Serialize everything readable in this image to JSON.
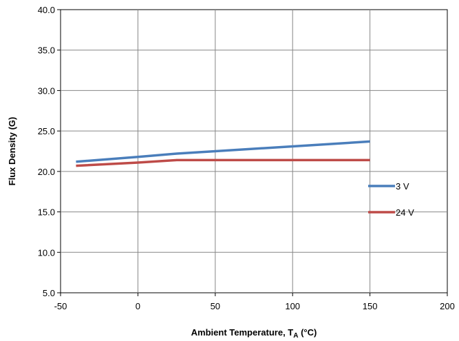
{
  "chart_data": {
    "type": "line",
    "xlabel_main": "Ambient Temperature, T",
    "xlabel_sub": "A",
    "xlabel_unit": " (°C)",
    "ylabel": "Flux Density (G)",
    "xlim": [
      -50,
      200
    ],
    "ylim": [
      5,
      40
    ],
    "x_ticks": [
      -50,
      0,
      50,
      100,
      150,
      200
    ],
    "y_ticks": [
      5,
      10,
      15,
      20,
      25,
      30,
      35,
      40
    ],
    "x_tick_labels": [
      "-50",
      "0",
      "50",
      "100",
      "150",
      "200"
    ],
    "y_tick_labels": [
      "5.0",
      "10.0",
      "15.0",
      "20.0",
      "25.0",
      "30.0",
      "35.0",
      "40.0"
    ],
    "grid": true,
    "legend_position": "right",
    "series": [
      {
        "name": "3 V",
        "color": "#4a7ebb",
        "x": [
          -40,
          0,
          25,
          50,
          100,
          150
        ],
        "y": [
          21.2,
          21.8,
          22.2,
          22.5,
          23.1,
          23.7
        ]
      },
      {
        "name": "24 V",
        "color": "#be4b48",
        "x": [
          -40,
          0,
          25,
          50,
          100,
          150
        ],
        "y": [
          20.7,
          21.1,
          21.4,
          21.4,
          21.4,
          21.4
        ]
      }
    ]
  }
}
